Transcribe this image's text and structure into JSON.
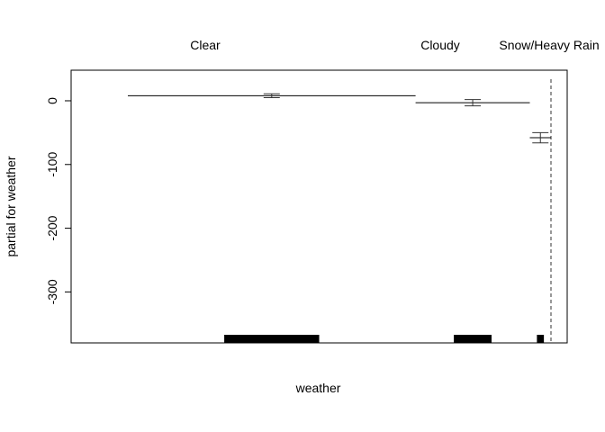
{
  "chart_data": {
    "type": "termplot",
    "xlabel": "weather",
    "ylabel": "partial for weather",
    "ylim": [
      -380,
      48
    ],
    "y_ticks": [
      0,
      -100,
      -200,
      -300
    ],
    "y_tick_labels": [
      "0",
      "-100",
      "-200",
      "-300"
    ],
    "categories": [
      "Clear",
      "Cloudy",
      "Snow/Heavy Rain"
    ],
    "values": [
      8,
      -3,
      -58
    ],
    "se_low": [
      5,
      -8,
      -66
    ],
    "se_high": [
      11,
      2,
      -50
    ],
    "rug_share": [
      0.68,
      0.27,
      0.05
    ],
    "colors": {
      "line": "#000000",
      "se": "#333333",
      "rug": "#000000"
    }
  }
}
